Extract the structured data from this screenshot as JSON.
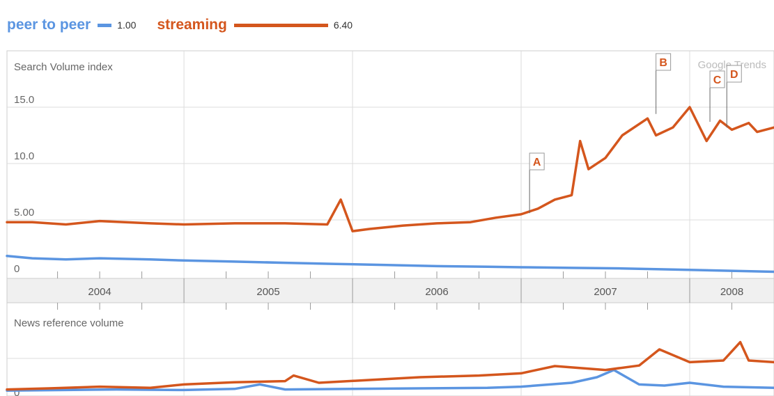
{
  "colors": {
    "peer": "#5b95e1",
    "streaming": "#d4561d",
    "grid": "#dcdcdc",
    "axis_band": "#f0f0f0",
    "text": "#666666"
  },
  "legend": [
    {
      "name": "peer to peer",
      "average": "1.00",
      "color": "#5b95e1",
      "swatch": "short"
    },
    {
      "name": "streaming",
      "average": "6.40",
      "color": "#d4561d",
      "swatch": "long"
    }
  ],
  "chart_data": [
    {
      "type": "line",
      "title": "",
      "ylabel": "Search Volume index",
      "watermark": "Google Trends",
      "y_ticks": [
        "0",
        "5.00",
        "10.0",
        "15.0"
      ],
      "ylim": [
        0,
        17
      ],
      "x_range": [
        2003.95,
        2008.5
      ],
      "year_ticks": [
        "2004",
        "2005",
        "2006",
        "2007",
        "2008"
      ],
      "series": [
        {
          "name": "peer to peer",
          "color": "#5b95e1",
          "x": [
            2003.95,
            2004.1,
            2004.3,
            2004.5,
            2004.8,
            2005.0,
            2005.3,
            2005.6,
            2005.9,
            2006.2,
            2006.5,
            2006.8,
            2007.0,
            2007.3,
            2007.6,
            2007.9,
            2008.2,
            2008.5
          ],
          "values": [
            1.8,
            1.6,
            1.5,
            1.6,
            1.5,
            1.4,
            1.3,
            1.2,
            1.1,
            1.0,
            0.9,
            0.85,
            0.8,
            0.75,
            0.7,
            0.6,
            0.5,
            0.4
          ]
        },
        {
          "name": "streaming",
          "color": "#d4561d",
          "x": [
            2003.95,
            2004.1,
            2004.3,
            2004.5,
            2004.8,
            2005.0,
            2005.3,
            2005.6,
            2005.85,
            2005.93,
            2006.0,
            2006.1,
            2006.3,
            2006.5,
            2006.7,
            2006.85,
            2007.0,
            2007.1,
            2007.2,
            2007.3,
            2007.35,
            2007.4,
            2007.5,
            2007.6,
            2007.75,
            2007.8,
            2007.9,
            2008.0,
            2008.1,
            2008.18,
            2008.25,
            2008.35,
            2008.4,
            2008.5
          ],
          "values": [
            4.8,
            4.8,
            4.6,
            4.9,
            4.7,
            4.6,
            4.7,
            4.7,
            4.6,
            6.8,
            4.0,
            4.2,
            4.5,
            4.7,
            4.8,
            5.2,
            5.5,
            6.0,
            6.8,
            7.2,
            12.0,
            9.5,
            10.5,
            12.5,
            14.0,
            12.5,
            13.2,
            15.0,
            12.0,
            13.8,
            13.0,
            13.6,
            12.8,
            13.2
          ]
        }
      ],
      "annotations": [
        {
          "label": "A",
          "x": 2007.05,
          "y": 5.6
        },
        {
          "label": "B",
          "x": 2007.8,
          "y": 14.4
        },
        {
          "label": "C",
          "x": 2008.12,
          "y": 13.7
        },
        {
          "label": "D",
          "x": 2008.22,
          "y": 13.2
        }
      ]
    },
    {
      "type": "line",
      "title": "",
      "ylabel": "News reference volume",
      "y_ticks": [
        "0"
      ],
      "series": [
        {
          "name": "peer to peer",
          "color": "#5b95e1",
          "x": [
            2003.95,
            2004.3,
            2004.6,
            2005.0,
            2005.3,
            2005.45,
            2005.6,
            2006.0,
            2006.4,
            2006.8,
            2007.0,
            2007.3,
            2007.45,
            2007.55,
            2007.7,
            2007.85,
            2008.0,
            2008.2,
            2008.5
          ],
          "values": [
            0.1,
            0.2,
            0.3,
            0.2,
            0.4,
            1.2,
            0.3,
            0.4,
            0.5,
            0.6,
            0.8,
            1.5,
            2.5,
            3.8,
            1.2,
            1.0,
            1.5,
            0.8,
            0.6
          ]
        },
        {
          "name": "streaming",
          "color": "#d4561d",
          "x": [
            2003.95,
            2004.2,
            2004.5,
            2004.8,
            2005.0,
            2005.3,
            2005.6,
            2005.65,
            2005.8,
            2006.1,
            2006.4,
            2006.75,
            2007.0,
            2007.2,
            2007.5,
            2007.7,
            2007.82,
            2008.0,
            2008.2,
            2008.3,
            2008.35,
            2008.5
          ],
          "values": [
            0.3,
            0.5,
            0.8,
            0.6,
            1.2,
            1.6,
            1.8,
            2.8,
            1.5,
            2.0,
            2.5,
            2.8,
            3.2,
            4.5,
            3.8,
            4.6,
            7.5,
            5.2,
            5.5,
            8.8,
            5.5,
            5.2
          ]
        }
      ]
    }
  ]
}
